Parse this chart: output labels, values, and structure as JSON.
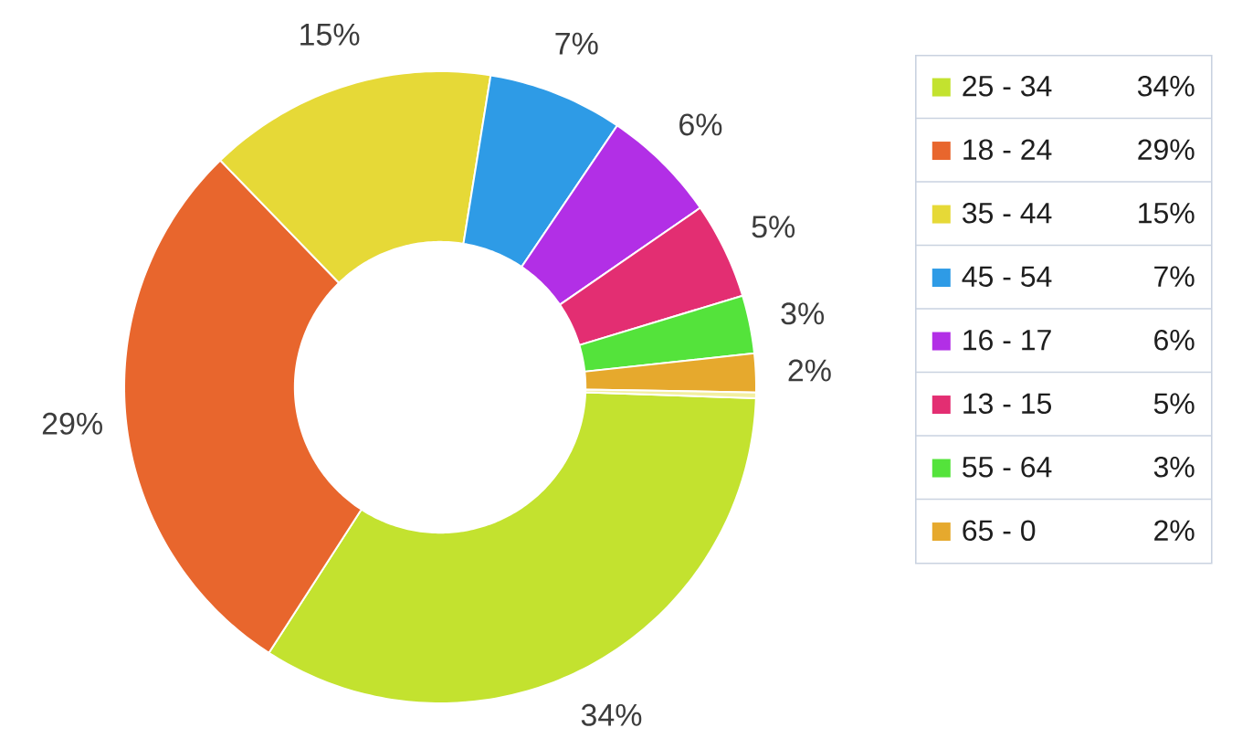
{
  "chart_data": {
    "type": "donut",
    "categories": [
      "25 - 34",
      "18 - 24",
      "35 - 44",
      "45 - 54",
      "16 - 17",
      "13 - 15",
      "55 - 64",
      "65 - 0",
      null
    ],
    "values": [
      34,
      29,
      15,
      7,
      6,
      5,
      3,
      2,
      0.3
    ],
    "colors": [
      "#c3e22f",
      "#e8662d",
      "#e6d937",
      "#2e9be6",
      "#b22fe6",
      "#e32e72",
      "#54e33b",
      "#e6a92d",
      "#f3efa0"
    ],
    "value_labels": [
      "34%",
      "29%",
      "15%",
      "7%",
      "6%",
      "5%",
      "3%",
      "2%",
      null
    ],
    "legend": "right"
  }
}
